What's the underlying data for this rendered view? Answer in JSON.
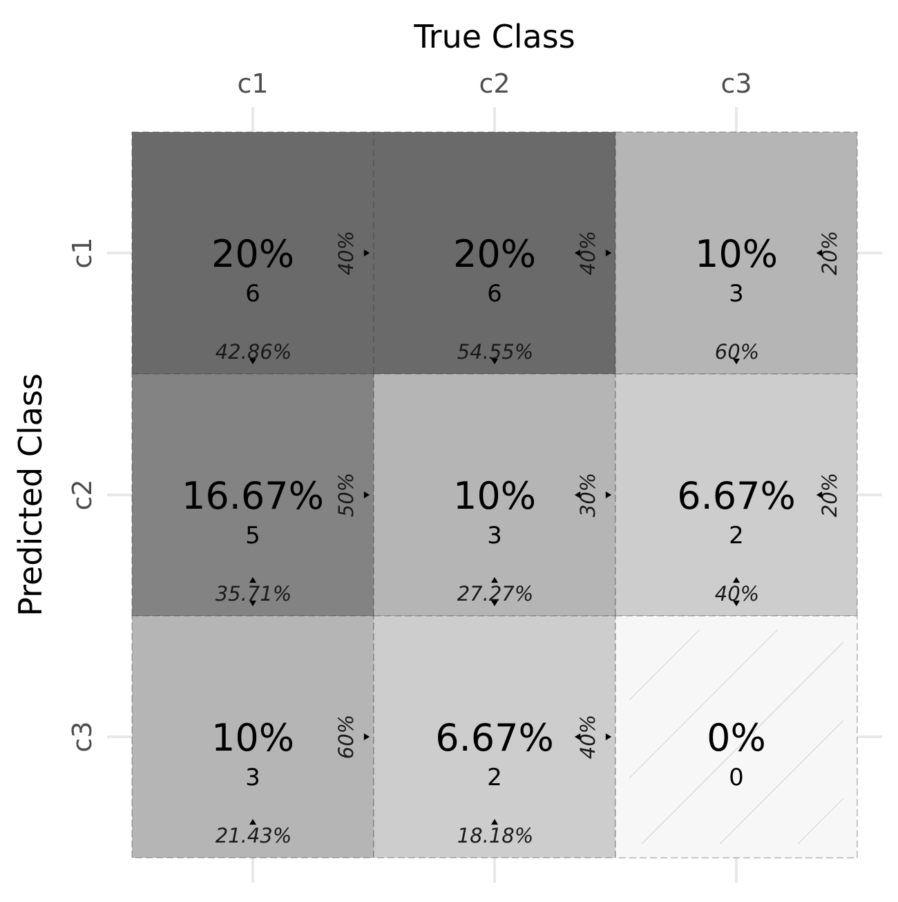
{
  "chart_data": {
    "type": "heatmap",
    "title": "",
    "xlabel": "True Class",
    "ylabel": "Predicted Class",
    "x_categories": [
      "c1",
      "c2",
      "c3"
    ],
    "y_categories": [
      "c1",
      "c2",
      "c3"
    ],
    "grid": true,
    "cells": [
      {
        "pred": "c1",
        "true": "c1",
        "count": 6,
        "pct": "20%",
        "col_pct": "42.86%",
        "row_pct": "40%",
        "shade": "#6a6a6a"
      },
      {
        "pred": "c1",
        "true": "c2",
        "count": 6,
        "pct": "20%",
        "col_pct": "54.55%",
        "row_pct": "40%",
        "shade": "#6a6a6a"
      },
      {
        "pred": "c1",
        "true": "c3",
        "count": 3,
        "pct": "10%",
        "col_pct": "60%",
        "row_pct": "20%",
        "shade": "#b5b5b5"
      },
      {
        "pred": "c2",
        "true": "c1",
        "count": 5,
        "pct": "16.67%",
        "col_pct": "35.71%",
        "row_pct": "50%",
        "shade": "#838383"
      },
      {
        "pred": "c2",
        "true": "c2",
        "count": 3,
        "pct": "10%",
        "col_pct": "27.27%",
        "row_pct": "30%",
        "shade": "#b5b5b5"
      },
      {
        "pred": "c2",
        "true": "c3",
        "count": 2,
        "pct": "6.67%",
        "col_pct": "40%",
        "row_pct": "20%",
        "shade": "#cdcdcd"
      },
      {
        "pred": "c3",
        "true": "c1",
        "count": 3,
        "pct": "10%",
        "col_pct": "21.43%",
        "row_pct": "60%",
        "shade": "#b5b5b5"
      },
      {
        "pred": "c3",
        "true": "c2",
        "count": 2,
        "pct": "6.67%",
        "col_pct": "18.18%",
        "row_pct": "40%",
        "shade": "#cdcdcd"
      },
      {
        "pred": "c3",
        "true": "c3",
        "count": 0,
        "pct": "0%",
        "col_pct": "",
        "row_pct": "",
        "shade": "#f7f7f7",
        "hatched": true
      }
    ]
  }
}
